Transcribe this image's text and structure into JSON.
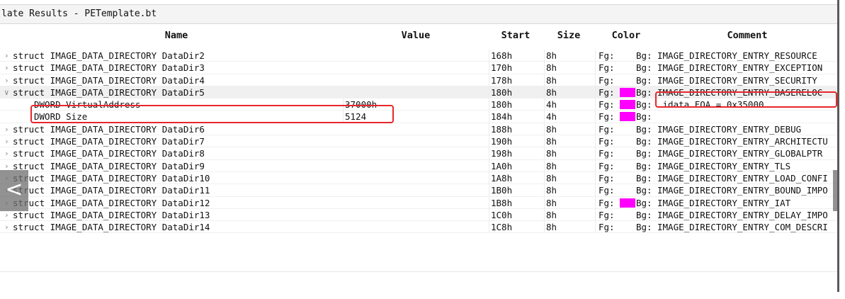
{
  "window": {
    "title": "late Results - PETemplate.bt"
  },
  "columns": {
    "name": "Name",
    "value": "Value",
    "start": "Start",
    "size": "Size",
    "color": "Color",
    "comment": "Comment"
  },
  "rows": [
    {
      "expander": ">",
      "name": "struct IMAGE_DATA_DIRECTORY DataDir2",
      "value": "",
      "start": "168h",
      "size": "8h",
      "fg": "Fg:",
      "swatch": false,
      "bg": "Bg:",
      "comment": "IMAGE_DIRECTORY_ENTRY_RESOURCE"
    },
    {
      "expander": ">",
      "name": "struct IMAGE_DATA_DIRECTORY DataDir3",
      "value": "",
      "start": "170h",
      "size": "8h",
      "fg": "Fg:",
      "swatch": false,
      "bg": "Bg:",
      "comment": "IMAGE_DIRECTORY_ENTRY_EXCEPTION"
    },
    {
      "expander": ">",
      "name": "struct IMAGE_DATA_DIRECTORY DataDir4",
      "value": "",
      "start": "178h",
      "size": "8h",
      "fg": "Fg:",
      "swatch": false,
      "bg": "Bg:",
      "comment": "IMAGE_DIRECTORY_ENTRY_SECURITY"
    },
    {
      "expander": "v",
      "name": "struct IMAGE_DATA_DIRECTORY DataDir5",
      "value": "",
      "start": "180h",
      "size": "8h",
      "fg": "Fg:",
      "swatch": true,
      "bg": "Bg:",
      "comment": "IMAGE_DIRECTORY_ENTRY_BASERELOC"
    },
    {
      "expander": "",
      "name": "DWORD VirtualAddress",
      "value": "37000h",
      "start": "180h",
      "size": "4h",
      "fg": "Fg:",
      "swatch": true,
      "bg": "Bg:",
      "comment": ".idata FOA = 0x35000"
    },
    {
      "expander": "",
      "name": "DWORD Size",
      "value": "5124",
      "start": "184h",
      "size": "4h",
      "fg": "Fg:",
      "swatch": true,
      "bg": "Bg:",
      "comment": ""
    },
    {
      "expander": ">",
      "name": "struct IMAGE_DATA_DIRECTORY DataDir6",
      "value": "",
      "start": "188h",
      "size": "8h",
      "fg": "Fg:",
      "swatch": false,
      "bg": "Bg:",
      "comment": "IMAGE_DIRECTORY_ENTRY_DEBUG"
    },
    {
      "expander": ">",
      "name": "struct IMAGE_DATA_DIRECTORY DataDir7",
      "value": "",
      "start": "190h",
      "size": "8h",
      "fg": "Fg:",
      "swatch": false,
      "bg": "Bg:",
      "comment": "IMAGE_DIRECTORY_ENTRY_ARCHITECTU"
    },
    {
      "expander": ">",
      "name": "struct IMAGE_DATA_DIRECTORY DataDir8",
      "value": "",
      "start": "198h",
      "size": "8h",
      "fg": "Fg:",
      "swatch": false,
      "bg": "Bg:",
      "comment": "IMAGE_DIRECTORY_ENTRY_GLOBALPTR"
    },
    {
      "expander": ">",
      "name": "struct IMAGE_DATA_DIRECTORY DataDir9",
      "value": "",
      "start": "1A0h",
      "size": "8h",
      "fg": "Fg:",
      "swatch": false,
      "bg": "Bg:",
      "comment": "IMAGE_DIRECTORY_ENTRY_TLS"
    },
    {
      "expander": ">",
      "name": "struct IMAGE_DATA_DIRECTORY DataDir10",
      "value": "",
      "start": "1A8h",
      "size": "8h",
      "fg": "Fg:",
      "swatch": false,
      "bg": "Bg:",
      "comment": "IMAGE_DIRECTORY_ENTRY_LOAD_CONFI"
    },
    {
      "expander": ">",
      "name": "struct IMAGE_DATA_DIRECTORY DataDir11",
      "value": "",
      "start": "1B0h",
      "size": "8h",
      "fg": "Fg:",
      "swatch": false,
      "bg": "Bg:",
      "comment": "IMAGE_DIRECTORY_ENTRY_BOUND_IMPO"
    },
    {
      "expander": ">",
      "name": "struct IMAGE_DATA_DIRECTORY DataDir12",
      "value": "",
      "start": "1B8h",
      "size": "8h",
      "fg": "Fg:",
      "swatch": true,
      "bg": "Bg:",
      "comment": "IMAGE_DIRECTORY_ENTRY_IAT"
    },
    {
      "expander": ">",
      "name": "struct IMAGE_DATA_DIRECTORY DataDir13",
      "value": "",
      "start": "1C0h",
      "size": "8h",
      "fg": "Fg:",
      "swatch": false,
      "bg": "Bg:",
      "comment": "IMAGE_DIRECTORY_ENTRY_DELAY_IMPO"
    },
    {
      "expander": ">",
      "name": "struct IMAGE_DATA_DIRECTORY DataDir14",
      "value": "",
      "start": "1C8h",
      "size": "8h",
      "fg": "Fg:",
      "swatch": false,
      "bg": "Bg:",
      "comment": "IMAGE_DIRECTORY_ENTRY_COM_DESCRI"
    }
  ],
  "navigation": {
    "prev_label": "<"
  },
  "colors": {
    "swatch": "#ff00ff",
    "highlight": "#e8262b"
  },
  "icons": {
    "collapsed": "chevron-right-icon",
    "expanded": "chevron-down-icon"
  }
}
